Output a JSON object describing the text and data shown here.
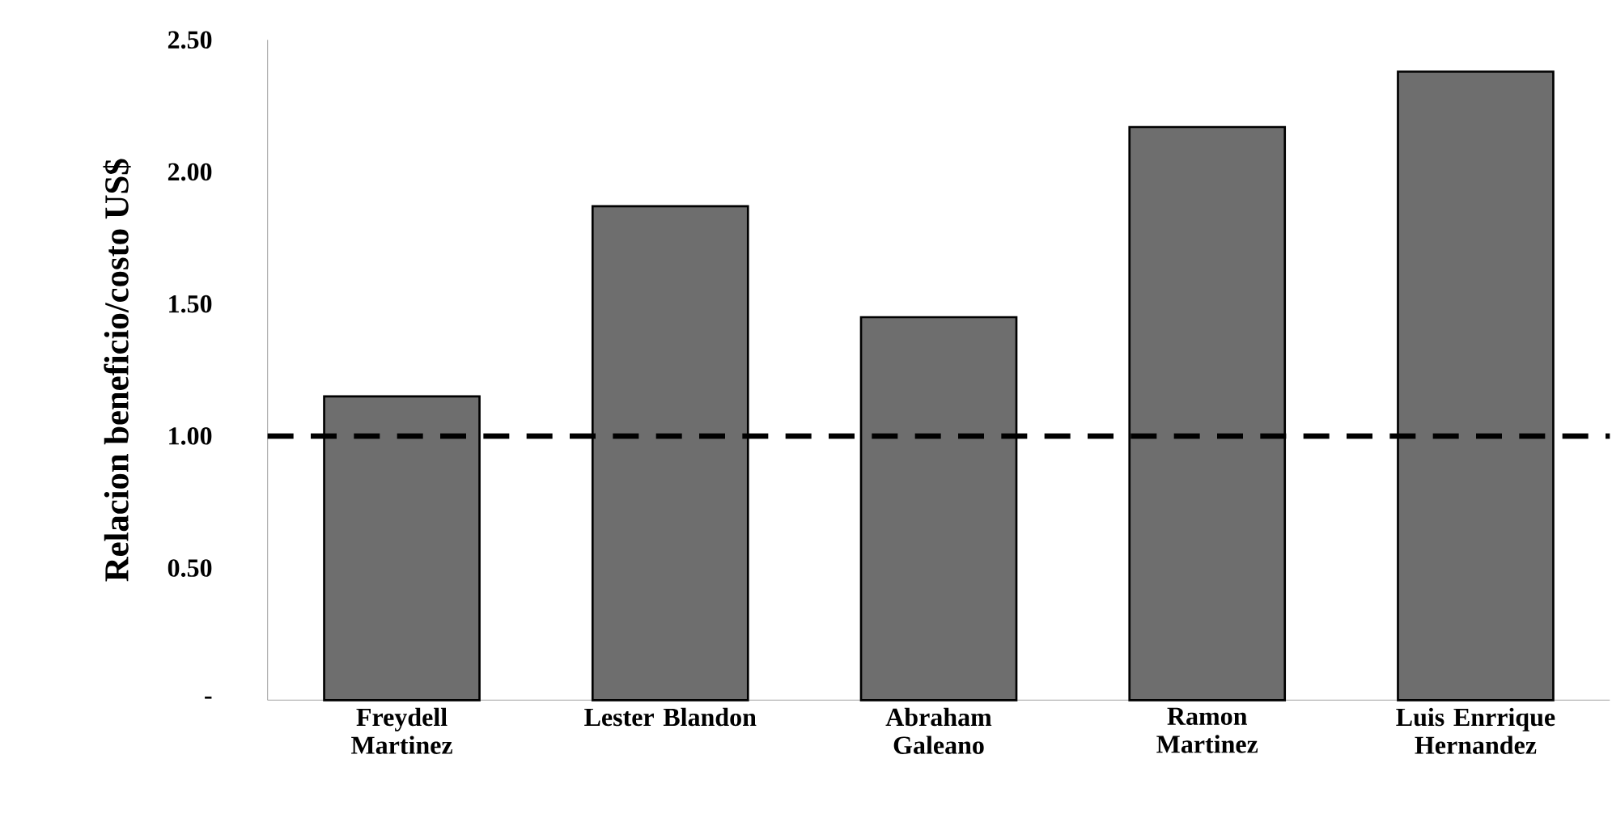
{
  "chart_data": {
    "type": "bar",
    "ylabel": "Relacion  beneficio/costo US$",
    "categories": [
      "Freydell Martinez",
      "Lester Blandon",
      "Abraham Galeano",
      "Ramon Martinez",
      "Luis Enrrique Hernandez"
    ],
    "values": [
      1.15,
      1.87,
      1.45,
      2.17,
      2.38
    ],
    "color": "#6e6e6e",
    "ylim": [
      0,
      2.5
    ],
    "yticks": [
      {
        "value": 0,
        "label": "-"
      },
      {
        "value": 0.5,
        "label": "0.50"
      },
      {
        "value": 1,
        "label": "1.00"
      },
      {
        "value": 1.5,
        "label": "1.50"
      },
      {
        "value": 2,
        "label": "2.00"
      },
      {
        "value": 2.5,
        "label": "2.50"
      }
    ],
    "ref_lines": [
      {
        "axis": "y",
        "value": 1,
        "color": "#000000",
        "line_style": "dashed"
      }
    ]
  }
}
